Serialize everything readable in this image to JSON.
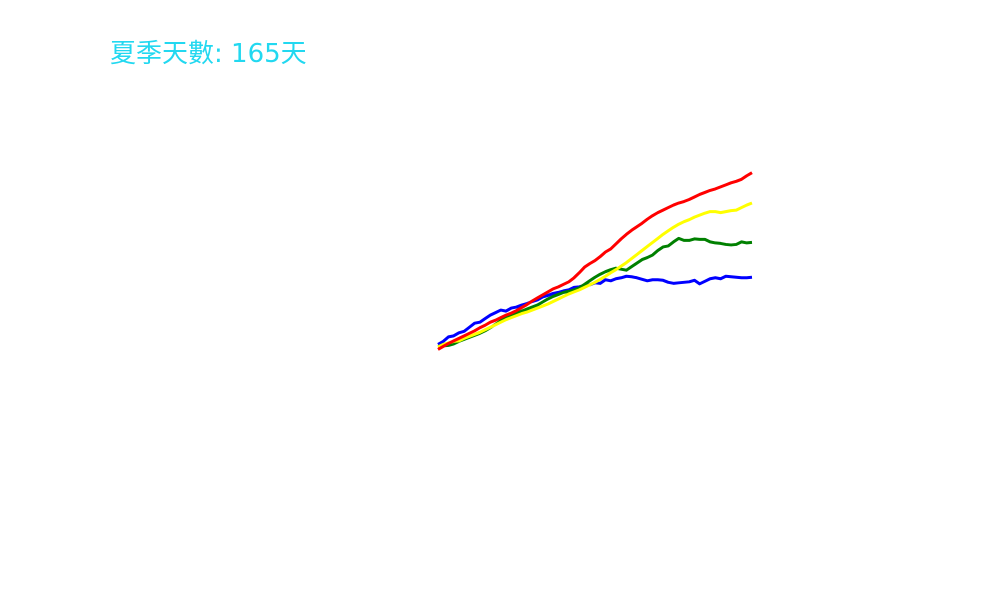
{
  "chart_data": {
    "type": "line",
    "title": "夏季天數: 165天",
    "title_color": "#22d8f0",
    "xlabel": "",
    "ylabel": "",
    "grid": false,
    "axes_visible": false,
    "legend": "none",
    "x": [
      0,
      1,
      2,
      3,
      4,
      5,
      6,
      7,
      8,
      9,
      10,
      11,
      12,
      13,
      14,
      15,
      16,
      17,
      18,
      19,
      20,
      21,
      22,
      23,
      24,
      25,
      26,
      27,
      28,
      29,
      30,
      31,
      32,
      33,
      34,
      35,
      36,
      37,
      38,
      39,
      40,
      41,
      42,
      43,
      44,
      45,
      46,
      47,
      48,
      49,
      50,
      51,
      52,
      53,
      54,
      55,
      56,
      57,
      58,
      59,
      60
    ],
    "series": [
      {
        "color": "#0000ff",
        "values": [
          3.0,
          4.2,
          6.0,
          6.4,
          7.6,
          8.2,
          9.8,
          11.4,
          11.8,
          13.2,
          14.6,
          15.6,
          16.6,
          16.2,
          17.4,
          17.8,
          18.6,
          19.2,
          20.0,
          20.6,
          21.8,
          22.4,
          23.2,
          23.6,
          24.2,
          24.6,
          25.6,
          25.8,
          26.4,
          26.6,
          27.4,
          27.2,
          28.6,
          28.2,
          29.0,
          29.4,
          30.0,
          29.8,
          29.4,
          28.8,
          28.2,
          28.6,
          28.6,
          28.4,
          27.6,
          27.2,
          27.4,
          27.6,
          27.8,
          28.4,
          27.0,
          28.0,
          29.0,
          29.4,
          29.0,
          30.0,
          29.8,
          29.6,
          29.4,
          29.4,
          29.6
        ]
      },
      {
        "color": "#008000",
        "values": [
          2.2,
          2.4,
          2.6,
          3.2,
          4.2,
          5.0,
          5.8,
          6.6,
          7.4,
          8.4,
          9.6,
          11.0,
          12.4,
          13.8,
          14.6,
          15.4,
          16.2,
          17.0,
          17.8,
          18.6,
          19.8,
          21.0,
          22.0,
          22.8,
          23.6,
          24.0,
          24.6,
          25.4,
          26.8,
          28.2,
          29.6,
          30.8,
          31.8,
          32.6,
          33.2,
          32.8,
          32.4,
          33.8,
          35.2,
          36.6,
          37.4,
          38.4,
          40.2,
          41.6,
          42.0,
          43.6,
          45.0,
          44.2,
          44.2,
          44.8,
          44.6,
          44.6,
          43.6,
          43.2,
          43.0,
          42.6,
          42.4,
          42.6,
          43.6,
          43.2,
          43.4
        ]
      },
      {
        "color": "#ffff00",
        "values": [
          2.0,
          3.0,
          3.6,
          4.2,
          4.4,
          5.4,
          6.2,
          7.0,
          7.8,
          8.8,
          9.8,
          10.8,
          11.8,
          12.8,
          13.6,
          14.4,
          15.2,
          15.8,
          16.6,
          17.4,
          18.2,
          19.0,
          20.0,
          21.0,
          22.0,
          23.0,
          23.8,
          24.6,
          25.6,
          26.6,
          27.6,
          28.8,
          30.0,
          31.4,
          32.6,
          34.0,
          35.4,
          37.0,
          38.6,
          40.2,
          41.8,
          43.4,
          45.0,
          46.6,
          48.0,
          49.4,
          50.6,
          51.6,
          52.4,
          53.4,
          54.2,
          55.0,
          55.6,
          55.6,
          55.2,
          55.6,
          56.0,
          56.2,
          57.2,
          58.2,
          59.0
        ]
      },
      {
        "color": "#ff0000",
        "values": [
          1.0,
          2.2,
          3.4,
          4.4,
          5.4,
          6.4,
          7.4,
          8.4,
          9.6,
          10.6,
          11.8,
          12.6,
          13.6,
          14.6,
          15.4,
          16.4,
          17.6,
          18.8,
          20.2,
          21.4,
          22.6,
          23.8,
          25.0,
          25.8,
          26.8,
          27.8,
          29.4,
          31.4,
          33.6,
          35.0,
          36.2,
          37.8,
          39.6,
          40.8,
          42.8,
          44.8,
          46.6,
          48.2,
          49.6,
          51.0,
          52.6,
          54.0,
          55.2,
          56.2,
          57.2,
          58.2,
          59.0,
          59.6,
          60.4,
          61.4,
          62.4,
          63.2,
          64.0,
          64.6,
          65.4,
          66.2,
          67.0,
          67.6,
          68.4,
          69.8,
          71.0
        ]
      }
    ]
  }
}
